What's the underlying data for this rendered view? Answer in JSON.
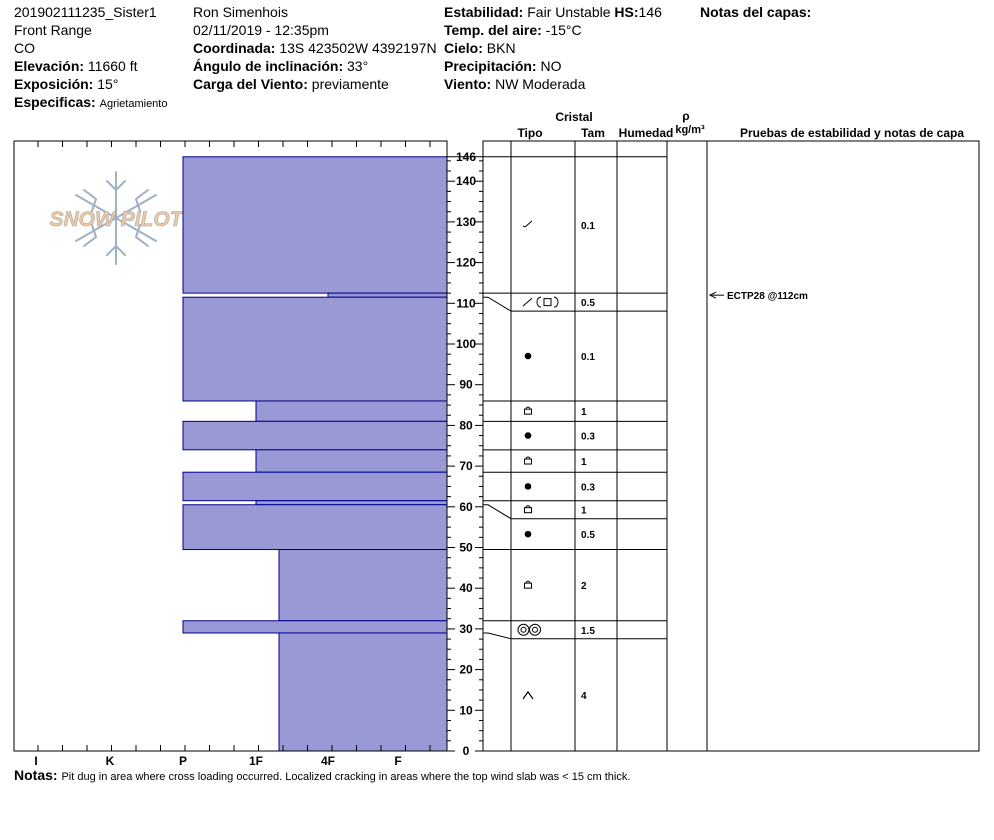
{
  "header": {
    "col1": {
      "pit_id": "201902111235_Sister1",
      "range": "Front Range",
      "state": "CO",
      "elevation_label": "Elevación:",
      "elevation_value": "11660 ft",
      "aspect_label": "Exposición:",
      "aspect_value": "15°",
      "specifics_label": "Especificas:",
      "specifics_value": "Agrietamiento"
    },
    "col2": {
      "observer": "Ron Simenhois",
      "datetime": "02/11/2019 - 12:35pm",
      "coord_label": "Coordinada:",
      "coord_value": "13S 423502W 4392197N",
      "slope_label": "Ángulo de inclinación:",
      "slope_value": "33°",
      "wind_load_label": "Carga del Viento:",
      "wind_load_value": "previamente"
    },
    "col3": {
      "stability_label": "Estabilidad:",
      "stability_value": "Fair Unstable",
      "hs_label": "HS:",
      "hs_value": "146",
      "air_temp_label": "Temp. del aire:",
      "air_temp_value": "-15°C",
      "sky_label": "Cielo:",
      "sky_value": "BKN",
      "precip_label": "Precipitación:",
      "precip_value": "NO",
      "wind_label": "Viento:",
      "wind_value": "NW Moderada"
    },
    "col4": {
      "layer_notes_label": "Notas del capas:"
    }
  },
  "table_headers": {
    "crystal": "Cristal",
    "type": "Tipo",
    "size": "Tam",
    "moisture": "Humedad",
    "rho": "ρ",
    "density_unit": "kg/m³",
    "tests": "Pruebas de estabilidad y notas de capa"
  },
  "logo_text": "SNOW PILOT",
  "notes": {
    "label": "Notas:",
    "text": "Pit dug in area where cross loading occurred. Localized cracking in areas where the top wind slab was < 15 cm thick."
  },
  "colors": {
    "layer_fill": "#9999d6",
    "layer_stroke": "#00008b",
    "logo_text": "#f1c9a3",
    "logo_snowflake": "#9fb1c4"
  },
  "chart_data": {
    "type": "snow_profile",
    "hs": 146,
    "y_range": [
      0,
      146
    ],
    "y_ticks": [
      0,
      10,
      20,
      30,
      40,
      50,
      60,
      70,
      80,
      90,
      100,
      110,
      120,
      130,
      140,
      146
    ],
    "x_hardness_scale": [
      "I",
      "K",
      "P",
      "1F",
      "4F",
      "F"
    ],
    "layers": [
      {
        "top": 146,
        "bottom": 112.5,
        "hardness": "P",
        "crystal": "fragment",
        "size": "0.1"
      },
      {
        "top": 112.5,
        "bottom": 111.5,
        "hardness": "4F",
        "crystal": "fragment-facet",
        "size": "0.5"
      },
      {
        "top": 111.5,
        "bottom": 86,
        "hardness": "P",
        "crystal": "round",
        "size": "0.1"
      },
      {
        "top": 86,
        "bottom": 81,
        "hardness": "1F",
        "crystal": "facet",
        "size": "1"
      },
      {
        "top": 81,
        "bottom": 74,
        "hardness": "P",
        "crystal": "round",
        "size": "0.3"
      },
      {
        "top": 74,
        "bottom": 68.5,
        "hardness": "1F",
        "crystal": "facet",
        "size": "1"
      },
      {
        "top": 68.5,
        "bottom": 61.5,
        "hardness": "P",
        "crystal": "round",
        "size": "0.3"
      },
      {
        "top": 61.5,
        "bottom": 60.5,
        "hardness": "1F",
        "crystal": "facet",
        "size": "1"
      },
      {
        "top": 60.5,
        "bottom": 49.5,
        "hardness": "P",
        "crystal": "round",
        "size": "0.5"
      },
      {
        "top": 49.5,
        "bottom": 32,
        "hardness": "1F+",
        "crystal": "facet",
        "size": "2"
      },
      {
        "top": 32,
        "bottom": 29,
        "hardness": "P",
        "crystal": "surface-hoar",
        "size": "1.5"
      },
      {
        "top": 29,
        "bottom": 0,
        "hardness": "1F+",
        "crystal": "depth-hoar",
        "size": "4"
      }
    ],
    "tests": [
      {
        "height": 112,
        "label": "ECTP28 @112cm"
      }
    ]
  }
}
